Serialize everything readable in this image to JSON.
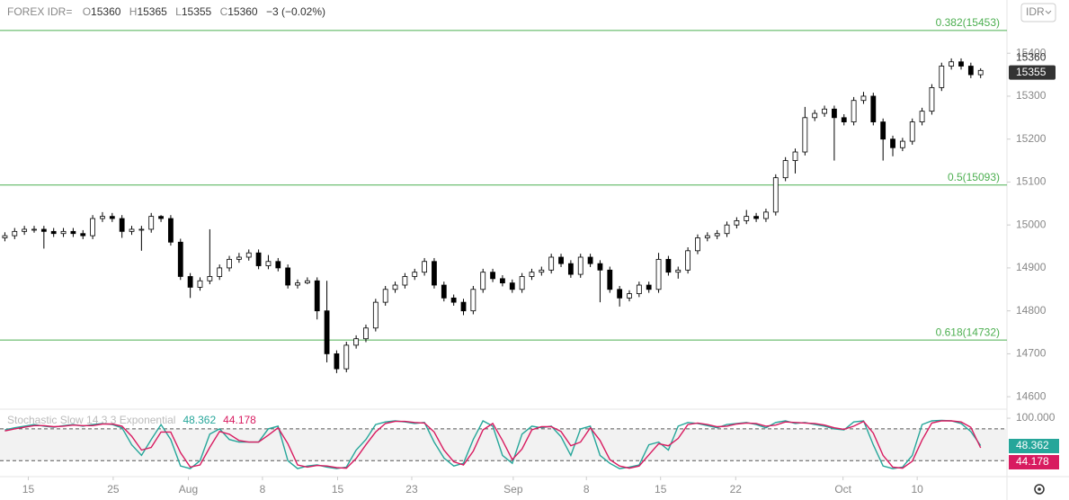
{
  "header": {
    "symbol": "FOREX IDR=",
    "ohlc_labels": [
      "O",
      "H",
      "L",
      "C"
    ],
    "open": 15360,
    "high": 15365,
    "low": 15355,
    "close": 15360,
    "change": "−3 (−0.02%)",
    "currency_button": "IDR"
  },
  "chart_data": [
    {
      "type": "candlestick",
      "xlim": [
        0,
        103.2
      ],
      "xticks": [
        {
          "value": 2.9,
          "label": "15"
        },
        {
          "value": 11.6,
          "label": "25"
        },
        {
          "value": 19.3,
          "label": "Aug"
        },
        {
          "value": 26.9,
          "label": "8"
        },
        {
          "value": 34.6,
          "label": "15"
        },
        {
          "value": 42.2,
          "label": "23"
        },
        {
          "value": 52.6,
          "label": "Sep"
        },
        {
          "value": 60.1,
          "label": "8"
        },
        {
          "value": 67.7,
          "label": "15"
        },
        {
          "value": 75.4,
          "label": "22"
        },
        {
          "value": 86.4,
          "label": "Oct"
        },
        {
          "value": 94.0,
          "label": "10"
        }
      ],
      "ylim": [
        14571,
        15524
      ],
      "yticks": [
        14600,
        14700,
        14800,
        14900,
        15000,
        15100,
        15200,
        15300,
        15400
      ],
      "last_price": 15360,
      "bid_price": 15355,
      "fib_levels": [
        {
          "value": 15453,
          "label": "0.382(15453)"
        },
        {
          "value": 15093,
          "label": "0.5(15093)"
        },
        {
          "value": 14732,
          "label": "0.618(14732)"
        }
      ],
      "fib_color": "#4caf50",
      "up_color": "#ffffff",
      "down_color": "#000000",
      "open": [
        14970,
        14975,
        14985,
        14990,
        14990,
        14985,
        14980,
        14985,
        14980,
        14975,
        15015,
        15020,
        15015,
        14985,
        14990,
        14990,
        15020,
        15015,
        14960,
        14880,
        14855,
        14870,
        14880,
        14900,
        14920,
        14925,
        14935,
        14905,
        14915,
        14900,
        14860,
        14865,
        14870,
        14800,
        14700,
        14665,
        14720,
        14735,
        14760,
        14820,
        14850,
        14860,
        14880,
        14890,
        14915,
        14860,
        14830,
        14820,
        14800,
        14850,
        14890,
        14875,
        14865,
        14850,
        14880,
        14890,
        14895,
        14925,
        14910,
        14885,
        14925,
        14910,
        14895,
        14850,
        14830,
        14840,
        14860,
        14850,
        14920,
        14890,
        14895,
        14940,
        14970,
        14975,
        14980,
        15000,
        15010,
        15020,
        15015,
        15030,
        15110,
        15150,
        15170,
        15250,
        15260,
        15270,
        15250,
        15240,
        15290,
        15300,
        15240,
        15200,
        15180,
        15195,
        15240,
        15265,
        15320,
        15370,
        15380,
        15370,
        15350
      ],
      "high": [
        14983,
        14993,
        14998,
        14998,
        14998,
        14993,
        14993,
        14993,
        14988,
        15023,
        15030,
        15028,
        15023,
        14998,
        14998,
        15028,
        15023,
        15023,
        14968,
        14888,
        14878,
        14990,
        14908,
        14928,
        14935,
        14943,
        14943,
        14930,
        14923,
        14908,
        14873,
        14878,
        14878,
        14870,
        14708,
        14728,
        14743,
        14768,
        14828,
        14858,
        14868,
        14888,
        14898,
        14923,
        14923,
        14868,
        14838,
        14828,
        14858,
        14898,
        14898,
        14883,
        14873,
        14888,
        14898,
        14903,
        14933,
        14933,
        14918,
        14933,
        14933,
        14918,
        14903,
        14858,
        14848,
        14868,
        14868,
        14935,
        14928,
        14903,
        14948,
        14978,
        14983,
        14988,
        15008,
        15018,
        15035,
        15028,
        15038,
        15118,
        15158,
        15178,
        15275,
        15268,
        15278,
        15278,
        15258,
        15298,
        15310,
        15308,
        15248,
        15208,
        15203,
        15248,
        15273,
        15328,
        15378,
        15388,
        15388,
        15378,
        15365
      ],
      "low": [
        14962,
        14967,
        14977,
        14982,
        14945,
        14972,
        14972,
        14972,
        14967,
        14967,
        15007,
        15007,
        14970,
        14977,
        14940,
        14982,
        15007,
        14952,
        14872,
        14830,
        14847,
        14862,
        14872,
        14892,
        14912,
        14917,
        14897,
        14897,
        14892,
        14852,
        14852,
        14862,
        14780,
        14680,
        14655,
        14657,
        14712,
        14727,
        14752,
        14812,
        14842,
        14852,
        14872,
        14882,
        14852,
        14822,
        14812,
        14790,
        14792,
        14842,
        14867,
        14857,
        14842,
        14842,
        14872,
        14882,
        14887,
        14902,
        14877,
        14877,
        14902,
        14820,
        14842,
        14810,
        14822,
        14832,
        14842,
        14842,
        14882,
        14875,
        14887,
        14932,
        14962,
        14967,
        14972,
        14992,
        15002,
        15007,
        15007,
        15022,
        15102,
        15120,
        15162,
        15242,
        15252,
        15150,
        15232,
        15232,
        15282,
        15232,
        15150,
        15160,
        15172,
        15187,
        15232,
        15257,
        15312,
        15362,
        15362,
        15342,
        15342
      ],
      "close": [
        14975,
        14985,
        14990,
        14990,
        14985,
        14980,
        14985,
        14980,
        14975,
        15015,
        15020,
        15015,
        14985,
        14990,
        14990,
        15020,
        15015,
        14960,
        14880,
        14855,
        14870,
        14880,
        14900,
        14920,
        14925,
        14935,
        14905,
        14915,
        14900,
        14860,
        14865,
        14870,
        14800,
        14700,
        14665,
        14720,
        14735,
        14760,
        14820,
        14850,
        14860,
        14880,
        14890,
        14915,
        14860,
        14830,
        14820,
        14800,
        14850,
        14890,
        14875,
        14865,
        14850,
        14880,
        14890,
        14895,
        14925,
        14910,
        14885,
        14925,
        14910,
        14895,
        14850,
        14830,
        14840,
        14860,
        14850,
        14920,
        14890,
        14895,
        14940,
        14970,
        14975,
        14980,
        15000,
        15010,
        15020,
        15015,
        15030,
        15110,
        15150,
        15170,
        15250,
        15260,
        15270,
        15250,
        15240,
        15290,
        15300,
        15240,
        15200,
        15180,
        15195,
        15240,
        15265,
        15320,
        15370,
        15380,
        15370,
        15350,
        15360
      ]
    },
    {
      "type": "line",
      "title": "Stochastic Slow 14 3 3 Exponential",
      "ylim": [
        -10,
        117
      ],
      "yticks": [
        {
          "value": 100,
          "label": "100.000"
        }
      ],
      "levels": [
        20,
        80
      ],
      "series": [
        {
          "name": "48.362",
          "color": "#26a69a",
          "values": [
            78,
            82,
            85,
            88,
            85,
            83,
            86,
            88,
            85,
            88,
            90,
            88,
            82,
            50,
            30,
            60,
            88,
            60,
            10,
            5,
            20,
            70,
            80,
            60,
            55,
            55,
            55,
            80,
            85,
            20,
            5,
            10,
            12,
            8,
            5,
            8,
            40,
            60,
            88,
            93,
            95,
            93,
            90,
            92,
            55,
            25,
            10,
            15,
            60,
            95,
            85,
            30,
            15,
            70,
            85,
            82,
            85,
            65,
            30,
            80,
            85,
            30,
            15,
            5,
            8,
            12,
            50,
            55,
            40,
            85,
            92,
            90,
            86,
            82,
            88,
            90,
            92,
            88,
            82,
            92,
            95,
            90,
            92,
            88,
            85,
            80,
            78,
            93,
            95,
            50,
            10,
            5,
            8,
            30,
            88,
            95,
            96,
            95,
            90,
            75,
            48.362
          ]
        },
        {
          "name": "44.178",
          "color": "#d81b60",
          "values": [
            76,
            80,
            83,
            86,
            86,
            84,
            85,
            87,
            86,
            86,
            89,
            89,
            85,
            66,
            40,
            45,
            74,
            74,
            35,
            8,
            12,
            45,
            75,
            70,
            58,
            55,
            55,
            68,
            82,
            52,
            12,
            8,
            11,
            10,
            7,
            6,
            24,
            50,
            74,
            90,
            94,
            94,
            92,
            91,
            74,
            40,
            18,
            12,
            38,
            78,
            90,
            58,
            22,
            42,
            78,
            84,
            84,
            75,
            48,
            55,
            82,
            58,
            22,
            10,
            6,
            10,
            31,
            52,
            48,
            62,
            88,
            91,
            88,
            84,
            85,
            89,
            91,
            90,
            85,
            87,
            93,
            92,
            91,
            90,
            87,
            82,
            79,
            85,
            94,
            72,
            30,
            8,
            6,
            19,
            59,
            91,
            95,
            95,
            93,
            83,
            44.178
          ]
        }
      ]
    }
  ]
}
